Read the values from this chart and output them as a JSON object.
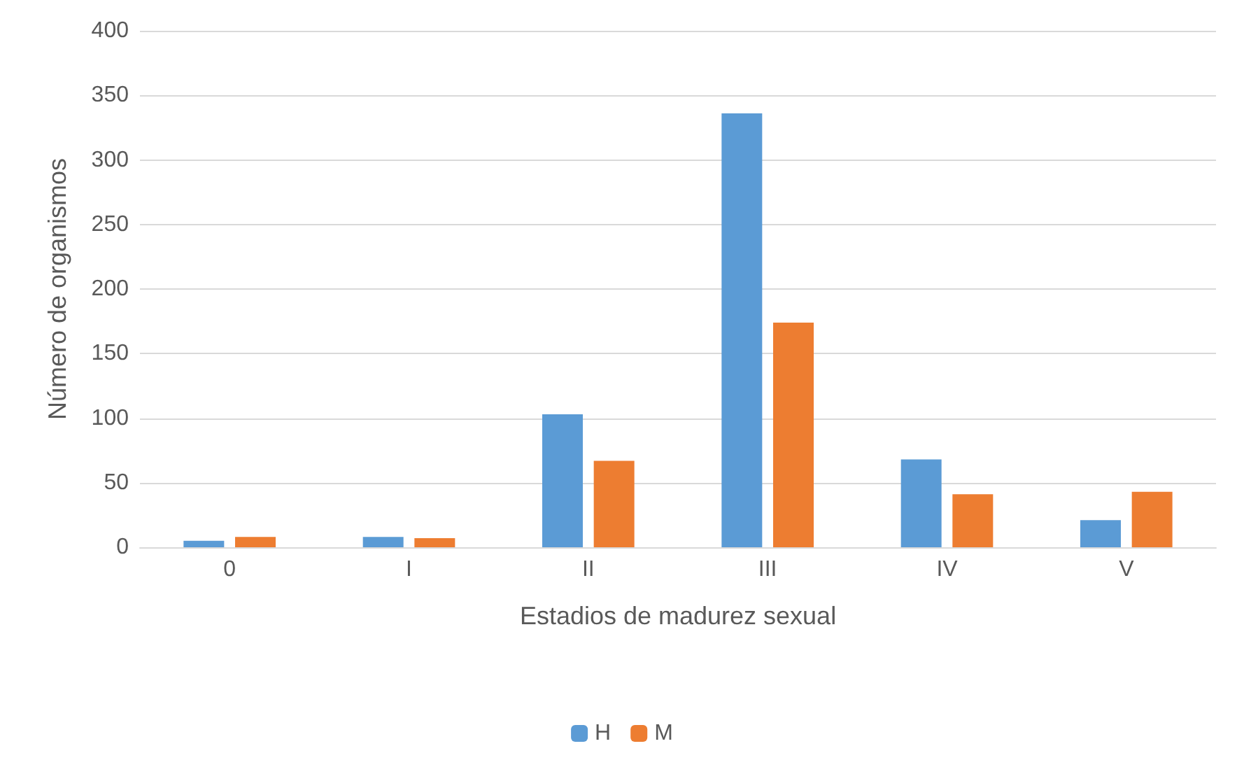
{
  "chart_data": {
    "type": "bar",
    "xlabel": "Estadios de madurez sexual",
    "ylabel": "Número de organismos",
    "categories": [
      "0",
      "I",
      "II",
      "III",
      "IV",
      "V"
    ],
    "series": [
      {
        "name": "H",
        "color": "#5b9bd5",
        "values": [
          5,
          8,
          103,
          336,
          68,
          21
        ]
      },
      {
        "name": "M",
        "color": "#ed7d31",
        "values": [
          8,
          7,
          67,
          174,
          41,
          43
        ]
      }
    ],
    "ylim": [
      0,
      400
    ],
    "yticks": [
      0,
      50,
      100,
      150,
      200,
      250,
      300,
      350,
      400
    ],
    "grid": "y",
    "legend": "bottom"
  }
}
